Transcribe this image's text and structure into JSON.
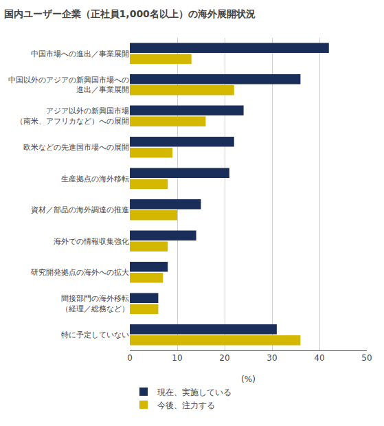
{
  "chart_data": {
    "type": "bar",
    "orientation": "horizontal",
    "title": "国内ユーザー企業（正社員1,000名以上）の海外展開状況",
    "xlabel": "(%)",
    "categories": [
      "中国市場への進出／事業展開",
      "中国以外のアジアの新興国市場への\n進出／事業展開",
      "アジア以外の新興国市場\n（南米、アフリカなど）への展開",
      "欧米などの先進国市場への展開",
      "生産拠点の海外移転",
      "資材／部品の海外調達の推進",
      "海外での情報収集強化",
      "研究開発拠点の海外への拡大",
      "間接部門の海外移転\n（経理／総務など）",
      "特に予定していない"
    ],
    "series": [
      {
        "name": "現在、実施している",
        "color": "#1a2e5a",
        "values": [
          42,
          36,
          24,
          22,
          21,
          15,
          14,
          8,
          6,
          31
        ]
      },
      {
        "name": "今後、注力する",
        "color": "#d4b800",
        "values": [
          13,
          22,
          16,
          9,
          8,
          10,
          8,
          7,
          6,
          36
        ]
      }
    ],
    "xlim": [
      0,
      50
    ],
    "xticks": [
      0,
      10,
      20,
      30,
      40,
      50
    ],
    "grid": true,
    "legend": "lower left"
  }
}
